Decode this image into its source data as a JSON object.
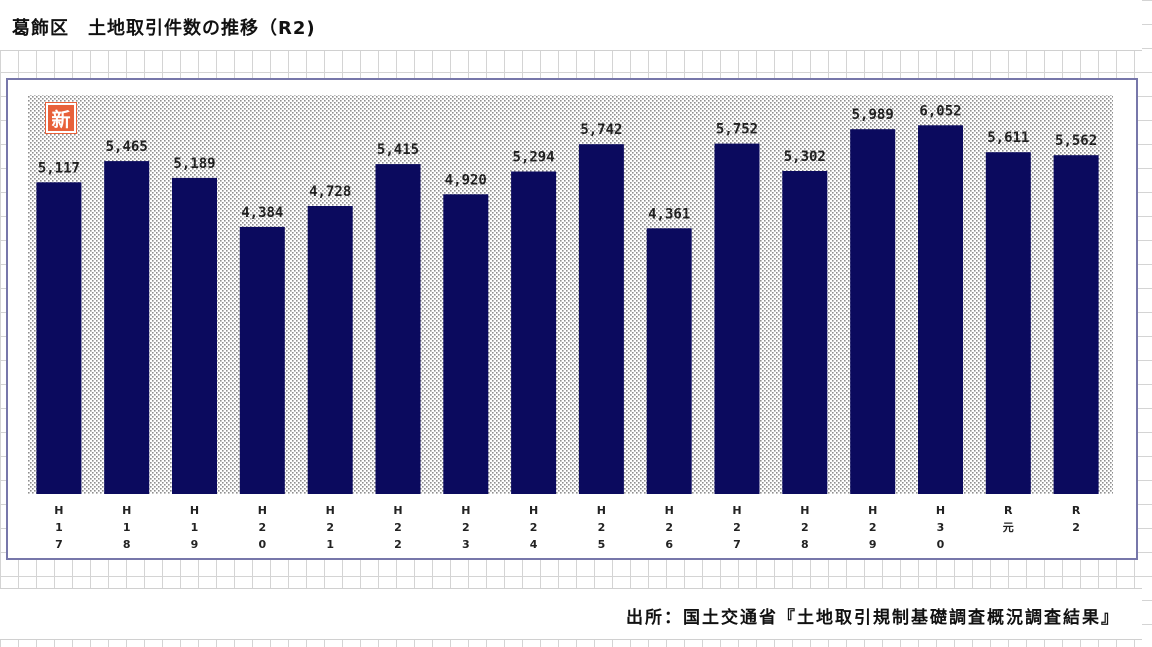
{
  "header": {
    "title": "葛飾区　土地取引件数の推移（R2)"
  },
  "badge": {
    "label": "新"
  },
  "footer": {
    "source": "出所：国土交通省『土地取引規制基礎調査概況調査結果』"
  },
  "colors": {
    "bar": "#0b0a5e",
    "plot_dots": "#8f8f8f",
    "badge": "#e8613a"
  },
  "chart_data": {
    "type": "bar",
    "title": "葛飾区　土地取引件数の推移（R2)",
    "categories": [
      "H17",
      "H18",
      "H19",
      "H20",
      "H21",
      "H22",
      "H23",
      "H24",
      "H25",
      "H26",
      "H27",
      "H28",
      "H29",
      "H30",
      "R元",
      "R2"
    ],
    "category_labels": [
      [
        "H",
        "1",
        "7"
      ],
      [
        "H",
        "1",
        "8"
      ],
      [
        "H",
        "1",
        "9"
      ],
      [
        "H",
        "2",
        "0"
      ],
      [
        "H",
        "2",
        "1"
      ],
      [
        "H",
        "2",
        "2"
      ],
      [
        "H",
        "2",
        "3"
      ],
      [
        "H",
        "2",
        "4"
      ],
      [
        "H",
        "2",
        "5"
      ],
      [
        "H",
        "2",
        "6"
      ],
      [
        "H",
        "2",
        "7"
      ],
      [
        "H",
        "2",
        "8"
      ],
      [
        "H",
        "2",
        "9"
      ],
      [
        "H",
        "3",
        "0"
      ],
      [
        "R",
        "元"
      ],
      [
        "R",
        "2"
      ]
    ],
    "values": [
      5117,
      5465,
      5189,
      4384,
      4728,
      5415,
      4920,
      5294,
      5742,
      4361,
      5752,
      5302,
      5989,
      6052,
      5611,
      5562
    ],
    "value_labels": [
      "5,117",
      "5,465",
      "5,189",
      "4,384",
      "4,728",
      "5,415",
      "4,920",
      "5,294",
      "5,742",
      "4,361",
      "5,752",
      "5,302",
      "5,989",
      "6,052",
      "5,611",
      "5,562"
    ],
    "xlabel": "",
    "ylabel": "",
    "ylim": [
      0,
      6550
    ],
    "grid": false,
    "legend": "none"
  }
}
